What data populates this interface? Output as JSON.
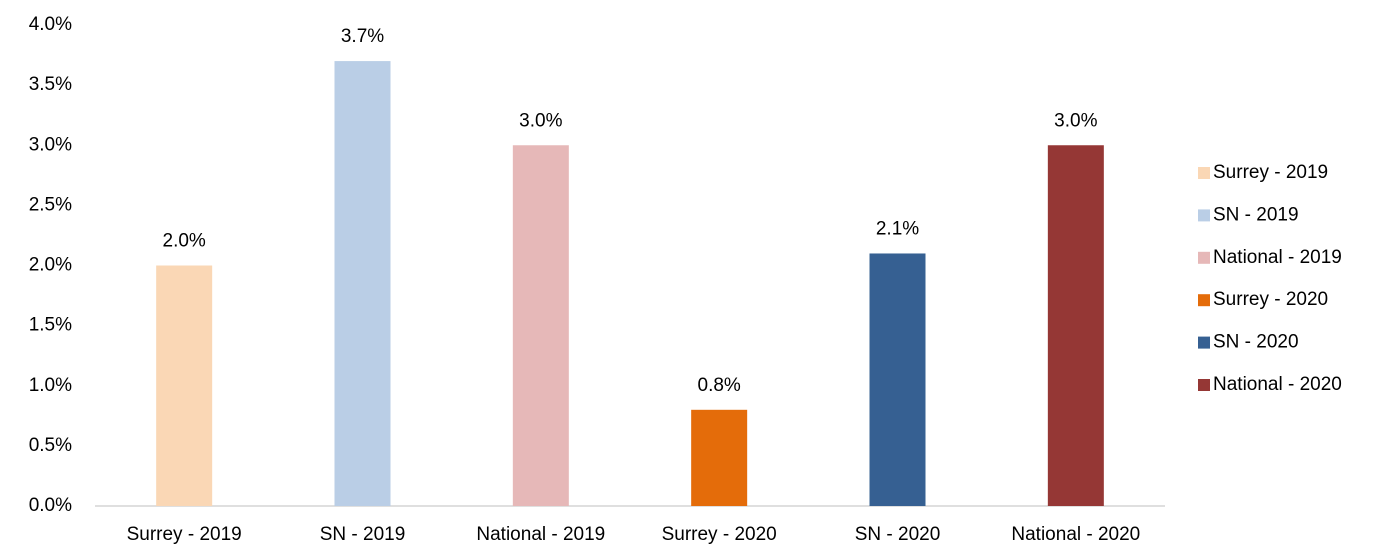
{
  "chart_data": {
    "type": "bar",
    "categories": [
      "Surrey - 2019",
      "SN - 2019",
      "National - 2019",
      "Surrey - 2020",
      "SN - 2020",
      "National - 2020"
    ],
    "values": [
      2.0,
      3.7,
      3.0,
      0.8,
      2.1,
      3.0
    ],
    "value_labels": [
      "2.0%",
      "3.7%",
      "3.0%",
      "0.8%",
      "2.1%",
      "3.0%"
    ],
    "colors": [
      "#fad7b5",
      "#bacee6",
      "#e6b8b8",
      "#e46c0a",
      "#366092",
      "#953735"
    ],
    "ylim": [
      0,
      4
    ],
    "yticks": [
      {
        "value": 0,
        "label": "0.0%"
      },
      {
        "value": 0.5,
        "label": "0.5%"
      },
      {
        "value": 1,
        "label": "1.0%"
      },
      {
        "value": 1.5,
        "label": "1.5%"
      },
      {
        "value": 2,
        "label": "2.0%"
      },
      {
        "value": 2.5,
        "label": "2.5%"
      },
      {
        "value": 3,
        "label": "3.0%"
      },
      {
        "value": 3.5,
        "label": "3.5%"
      },
      {
        "value": 4,
        "label": "4.0%"
      }
    ],
    "grid": false,
    "legend": "right"
  }
}
